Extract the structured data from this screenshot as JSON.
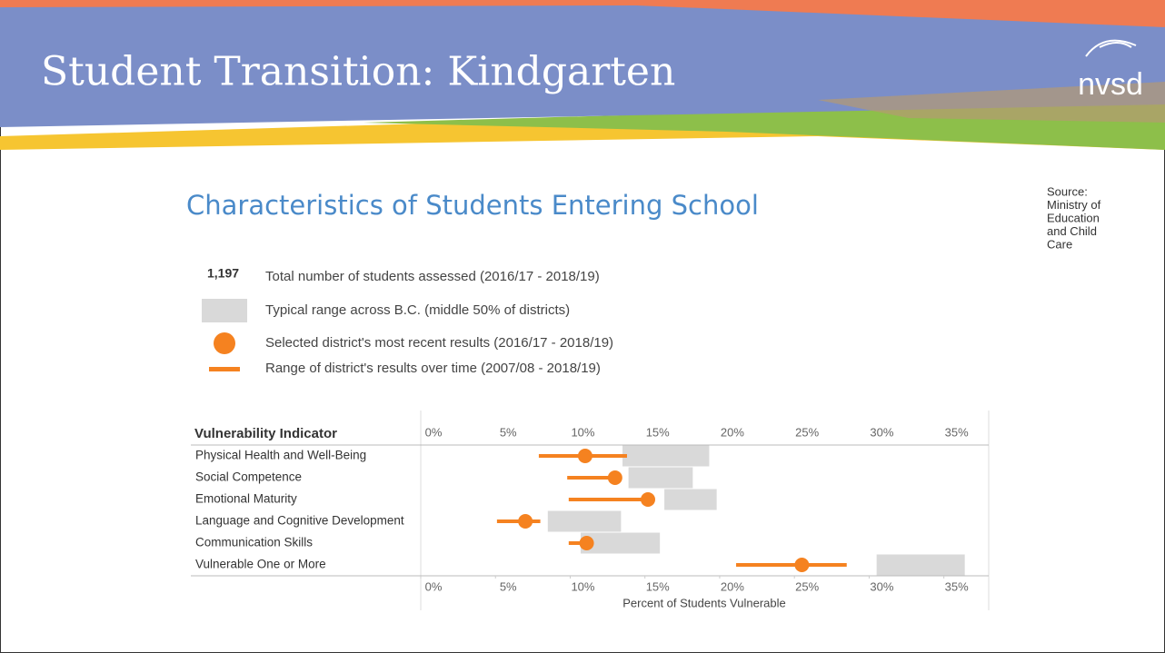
{
  "header": {
    "title": "Student Transition: Kindgarten",
    "logo": "nvsd"
  },
  "source": [
    "Source:",
    "Ministry of",
    "Education",
    "and Child",
    "Care"
  ],
  "chart_data": {
    "type": "range-dot",
    "title": "Characteristics of Students Entering School",
    "total_count": "1,197",
    "total_text": "Total number of students assessed (2016/17 - 2018/19)",
    "category_header": "Vulnerability Indicator",
    "categories": [
      "Physical Health and Well-Being",
      "Social Competence",
      "Emotional Maturity",
      "Language and Cognitive Development",
      "Communication Skills",
      "Vulnerable One or More"
    ],
    "series": [
      {
        "name": "Typical range across B.C. (middle 50% of districts)",
        "color": "#d9d9d9",
        "low": [
          13.5,
          13.9,
          16.3,
          8.5,
          10.7,
          30.5
        ],
        "high": [
          19.3,
          18.2,
          19.8,
          13.4,
          16.0,
          36.4
        ]
      },
      {
        "name": "Selected district's most recent results (2016/17 - 2018/19)",
        "color": "#f58220",
        "values": [
          11.0,
          13.0,
          15.2,
          7.0,
          11.1,
          25.5
        ]
      },
      {
        "name": "Range of district's results over time (2007/08 - 2018/19)",
        "color": "#f58220",
        "low": [
          7.9,
          9.8,
          9.9,
          5.1,
          9.9,
          21.1
        ],
        "high": [
          13.8,
          13.0,
          15.2,
          8.0,
          11.1,
          28.5
        ]
      }
    ],
    "xlabel": "Percent of Students Vulnerable",
    "xlim": [
      0,
      38
    ],
    "xticks": [
      {
        "value": 0,
        "label": "0%"
      },
      {
        "value": 5,
        "label": "5%"
      },
      {
        "value": 10,
        "label": "10%"
      },
      {
        "value": 15,
        "label": "15%"
      },
      {
        "value": 20,
        "label": "20%"
      },
      {
        "value": 25,
        "label": "25%"
      },
      {
        "value": 30,
        "label": "30%"
      },
      {
        "value": 35,
        "label": "35%"
      }
    ]
  }
}
